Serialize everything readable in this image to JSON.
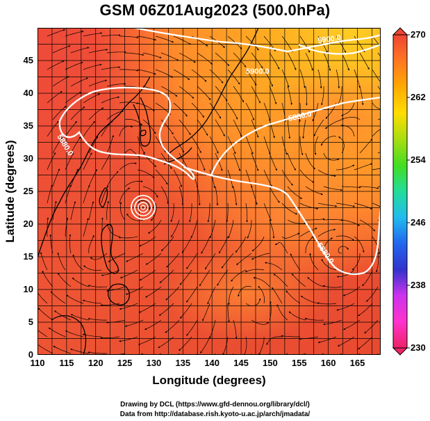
{
  "title": "GSM 06Z01Aug2023 (500.0hPa)",
  "xlabel": "Longitude (degrees)",
  "ylabel": "Latitude (degrees)",
  "x_ticks": [
    "110",
    "115",
    "120",
    "125",
    "130",
    "135",
    "140",
    "145",
    "150",
    "155",
    "160",
    "165"
  ],
  "y_ticks": [
    "0",
    "5",
    "10",
    "15",
    "20",
    "25",
    "30",
    "35",
    "40",
    "45"
  ],
  "extent": {
    "lon_min": 110,
    "lon_max": 169,
    "lat_min": 0,
    "lat_max": 50
  },
  "colorbar": {
    "ticks": [
      "270",
      "262",
      "254",
      "246",
      "238",
      "230"
    ],
    "min": 230,
    "max": 270,
    "colors": [
      "#ee2266",
      "#ff33cc",
      "#cc33ee",
      "#3333cc",
      "#2266ee",
      "#22bbee",
      "#22dd99",
      "#44dd22",
      "#aadd11",
      "#ffdd00",
      "#ffaa00",
      "#ff7722",
      "#ee4433"
    ]
  },
  "contours": [
    {
      "label": "5900.0"
    },
    {
      "label": "5880.0"
    },
    {
      "label": "5880.0"
    },
    {
      "label": "5880.0"
    },
    {
      "label": "5900.0"
    }
  ],
  "credits": {
    "line1": "Drawing by DCL (https://www.gfd-dennou.org/library/dcl/)",
    "line2": "Data from http://database.rish.kyoto-u.ac.jp/arch/jmadata/"
  }
}
